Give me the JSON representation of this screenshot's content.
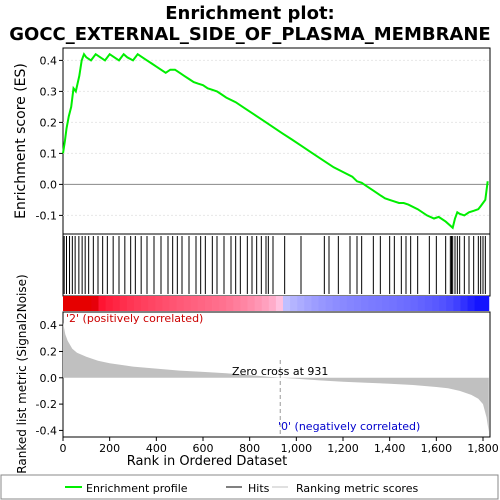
{
  "chart_data": {
    "type": "line",
    "title_line1": "Enrichment plot:",
    "title_line2": "GOCC_EXTERNAL_SIDE_OF_PLASMA_MEMBRANE",
    "es_panel": {
      "ylabel": "Enrichment score (ES)",
      "ylim": [
        -0.16,
        0.44
      ],
      "yticks": [
        -0.1,
        0.0,
        0.1,
        0.2,
        0.3,
        0.4
      ],
      "ytick_labels": [
        "-0.1",
        "0.0",
        "0.1",
        "0.2",
        "0.3",
        "0.4"
      ],
      "xlim": [
        0,
        1830
      ],
      "series_color": "#00ee00",
      "x": [
        0,
        8,
        15,
        25,
        35,
        45,
        55,
        70,
        80,
        90,
        100,
        120,
        140,
        160,
        180,
        200,
        220,
        240,
        260,
        275,
        300,
        320,
        340,
        360,
        380,
        400,
        420,
        440,
        460,
        480,
        500,
        520,
        540,
        560,
        580,
        600,
        620,
        640,
        660,
        680,
        700,
        740,
        780,
        820,
        860,
        900,
        940,
        980,
        1020,
        1060,
        1100,
        1130,
        1160,
        1200,
        1240,
        1260,
        1280,
        1300,
        1330,
        1360,
        1380,
        1400,
        1420,
        1440,
        1460,
        1480,
        1520,
        1560,
        1590,
        1610,
        1640,
        1670,
        1680,
        1690,
        1700,
        1720,
        1740,
        1760,
        1780,
        1790,
        1800,
        1810,
        1820
      ],
      "y": [
        0.1,
        0.14,
        0.18,
        0.22,
        0.25,
        0.31,
        0.3,
        0.35,
        0.4,
        0.42,
        0.41,
        0.4,
        0.42,
        0.41,
        0.4,
        0.42,
        0.41,
        0.4,
        0.42,
        0.41,
        0.4,
        0.42,
        0.41,
        0.4,
        0.39,
        0.38,
        0.37,
        0.36,
        0.37,
        0.37,
        0.36,
        0.35,
        0.34,
        0.33,
        0.325,
        0.32,
        0.31,
        0.305,
        0.3,
        0.29,
        0.28,
        0.265,
        0.245,
        0.225,
        0.205,
        0.185,
        0.165,
        0.145,
        0.125,
        0.105,
        0.085,
        0.07,
        0.055,
        0.04,
        0.025,
        0.01,
        0.005,
        -0.005,
        -0.02,
        -0.035,
        -0.045,
        -0.05,
        -0.055,
        -0.06,
        -0.06,
        -0.065,
        -0.08,
        -0.1,
        -0.11,
        -0.105,
        -0.12,
        -0.14,
        -0.11,
        -0.09,
        -0.095,
        -0.1,
        -0.09,
        -0.085,
        -0.08,
        -0.07,
        -0.06,
        -0.05,
        0.01
      ]
    },
    "hits": [
      5,
      15,
      28,
      40,
      52,
      68,
      82,
      95,
      110,
      130,
      150,
      170,
      190,
      215,
      240,
      265,
      290,
      310,
      335,
      360,
      390,
      420,
      450,
      470,
      490,
      510,
      540,
      570,
      590,
      610,
      640,
      660,
      690,
      720,
      740,
      760,
      790,
      810,
      830,
      850,
      870,
      880,
      900,
      950,
      1020,
      1120,
      1140,
      1180,
      1230,
      1260,
      1280,
      1330,
      1360,
      1400,
      1420,
      1450,
      1470,
      1490,
      1520,
      1570,
      1600,
      1640,
      1660,
      1665,
      1670,
      1680,
      1690,
      1700,
      1720,
      1740,
      1760,
      1780,
      1790,
      1800,
      1810
    ],
    "metric_panel": {
      "ylabel": "Ranked list metric (Signal2Noise)",
      "ylim": [
        -0.45,
        0.5
      ],
      "yticks": [
        -0.4,
        -0.2,
        0.0,
        0.2,
        0.4
      ],
      "ytick_labels": [
        "-0.4",
        "-0.2",
        "0.0",
        "0.2",
        "0.4"
      ],
      "x": [
        0,
        10,
        20,
        40,
        60,
        100,
        150,
        200,
        300,
        400,
        500,
        600,
        700,
        800,
        900,
        931,
        1000,
        1100,
        1200,
        1300,
        1400,
        1500,
        1600,
        1650,
        1700,
        1750,
        1780,
        1800,
        1815,
        1825
      ],
      "values": [
        0.42,
        0.33,
        0.28,
        0.22,
        0.19,
        0.16,
        0.13,
        0.11,
        0.085,
        0.07,
        0.055,
        0.045,
        0.035,
        0.02,
        0.005,
        0.0,
        -0.008,
        -0.02,
        -0.03,
        -0.038,
        -0.045,
        -0.055,
        -0.07,
        -0.08,
        -0.1,
        -0.13,
        -0.16,
        -0.2,
        -0.3,
        -0.41
      ],
      "zero_cross_label": "Zero cross at 931",
      "zero_cross": 931,
      "pos_label": "'2' (positively correlated)",
      "neg_label": "'0' (negatively correlated)",
      "fill_color": "#c0c0c0"
    },
    "xlabel": "Rank in Ordered Dataset",
    "xticks": [
      0,
      200,
      400,
      600,
      800,
      1000,
      1200,
      1400,
      1600,
      1800
    ],
    "xtick_labels": [
      "0",
      "200",
      "400",
      "600",
      "800",
      "1,000",
      "1,200",
      "1,400",
      "1,600",
      "1,800"
    ],
    "legend": {
      "placement": "bottom",
      "items": [
        {
          "label": "Enrichment profile",
          "color": "#00ee00",
          "style": "line"
        },
        {
          "label": "Hits",
          "color": "#000000",
          "style": "line"
        },
        {
          "label": "Ranking metric scores",
          "color": "#c0c0c0",
          "style": "line"
        }
      ]
    }
  }
}
